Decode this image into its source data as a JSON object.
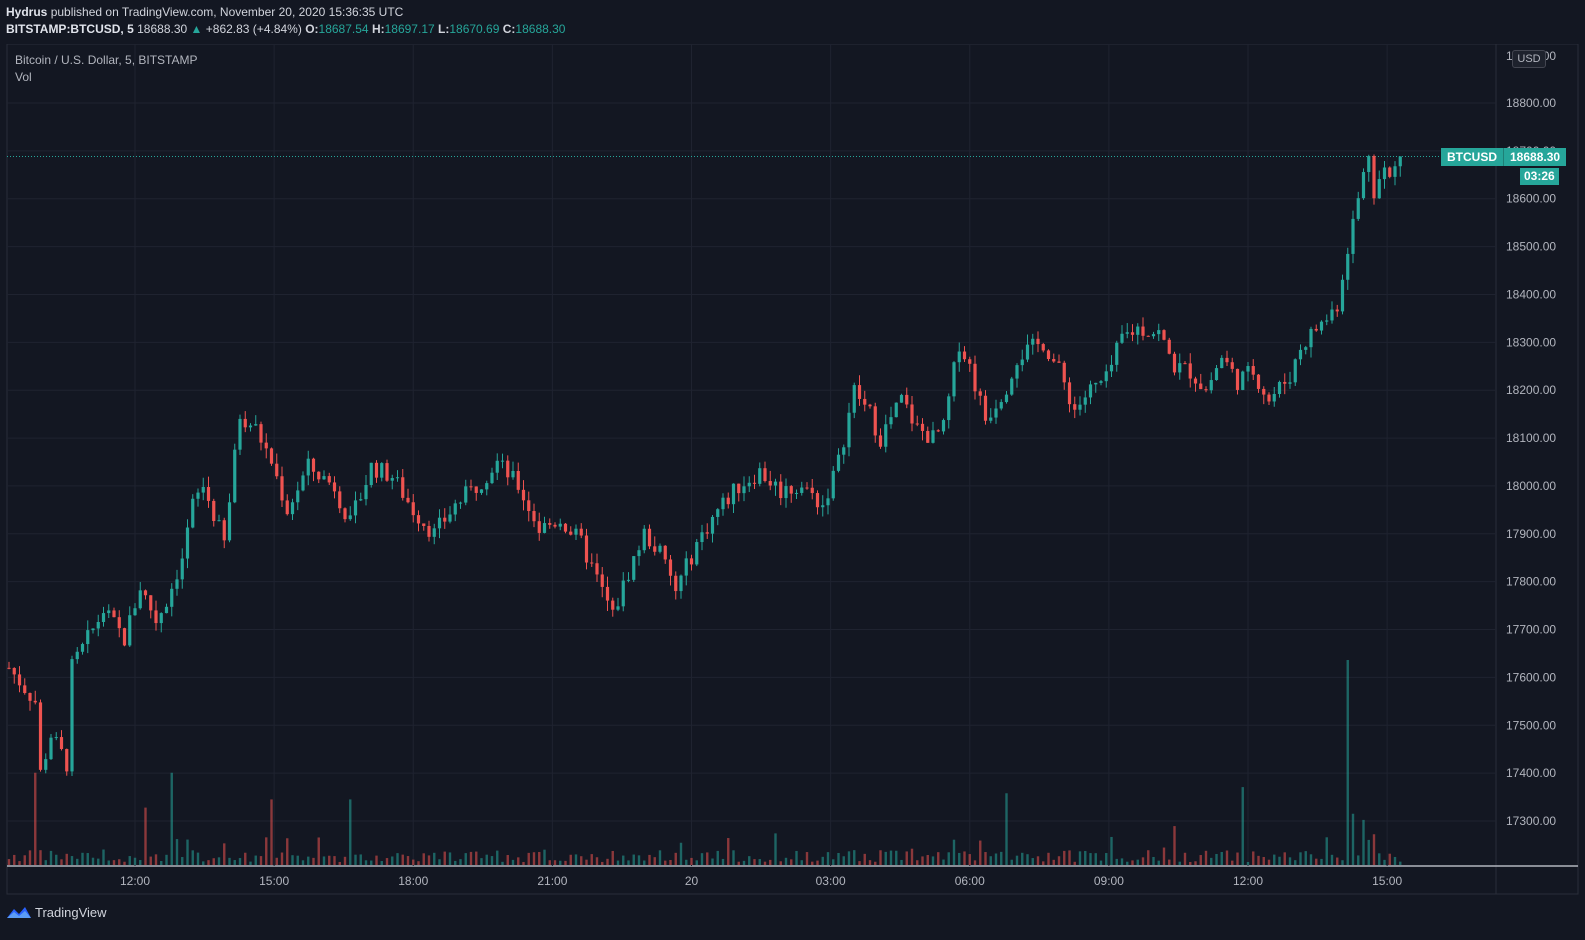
{
  "header": {
    "author": "Hydrus",
    "published_text": "published on TradingView.com, November 20, 2020 15:36:35 UTC",
    "symbol": "BITSTAMP:BTCUSD, 5",
    "last": "18688.30",
    "change": "+862.83 (+4.84%)",
    "o_label": "O:",
    "o_val": "18687.54",
    "h_label": "H:",
    "h_val": "18697.17",
    "l_label": "L:",
    "l_val": "18670.69",
    "c_label": "C:",
    "c_val": "18688.30"
  },
  "legend": {
    "title": "Bitcoin / U.S. Dollar, 5, BITSTAMP",
    "vol": "Vol"
  },
  "currency_button": "USD",
  "price_tag": {
    "name": "BTCUSD",
    "value": "18688.30",
    "countdown": "03:26"
  },
  "footer": {
    "brand": "TradingView"
  },
  "colors": {
    "background": "#131722",
    "up": "#26a69a",
    "down": "#ef5350",
    "grid": "#1f2330"
  },
  "chart_data": {
    "type": "candlestick",
    "symbol": "BTCUSD",
    "interval": "5",
    "ylim": [
      17200,
      18900
    ],
    "y_ticks": [
      17300,
      17400,
      17500,
      17600,
      17700,
      17800,
      17900,
      18000,
      18100,
      18200,
      18300,
      18400,
      18500,
      18600,
      18700,
      18800
    ],
    "y_tick_labels": [
      "17300.00",
      "17400.00",
      "17500.00",
      "17600.00",
      "17700.00",
      "17800.00",
      "17900.00",
      "18000.00",
      "18100.00",
      "18200.00",
      "18300.00",
      "18400.00",
      "18500.00",
      "18600.00",
      "18700.00",
      "18800.00"
    ],
    "x_tick_labels": [
      "12:00",
      "15:00",
      "18:00",
      "21:00",
      "20",
      "03:00",
      "06:00",
      "09:00",
      "12:00",
      "15:00"
    ],
    "current_price": 18688.3,
    "close_path": [
      [
        0,
        17620
      ],
      [
        5,
        17550
      ],
      [
        6,
        17400
      ],
      [
        8,
        17480
      ],
      [
        11,
        17420
      ],
      [
        12,
        17620
      ],
      [
        16,
        17700
      ],
      [
        18,
        17740
      ],
      [
        22,
        17680
      ],
      [
        25,
        17790
      ],
      [
        28,
        17720
      ],
      [
        30,
        17760
      ],
      [
        33,
        17850
      ],
      [
        35,
        17960
      ],
      [
        37,
        18000
      ],
      [
        39,
        17940
      ],
      [
        41,
        17880
      ],
      [
        44,
        18150
      ],
      [
        47,
        18120
      ],
      [
        50,
        18050
      ],
      [
        53,
        17950
      ],
      [
        57,
        18040
      ],
      [
        62,
        18000
      ],
      [
        65,
        17920
      ],
      [
        69,
        18040
      ],
      [
        73,
        18020
      ],
      [
        77,
        17950
      ],
      [
        81,
        17900
      ],
      [
        85,
        17960
      ],
      [
        89,
        18000
      ],
      [
        93,
        18050
      ],
      [
        97,
        18000
      ],
      [
        101,
        17910
      ],
      [
        105,
        17930
      ],
      [
        109,
        17880
      ],
      [
        113,
        17780
      ],
      [
        115,
        17730
      ],
      [
        118,
        17820
      ],
      [
        121,
        17900
      ],
      [
        124,
        17860
      ],
      [
        127,
        17780
      ],
      [
        131,
        17880
      ],
      [
        135,
        17950
      ],
      [
        139,
        18000
      ],
      [
        143,
        18030
      ],
      [
        147,
        17990
      ],
      [
        151,
        18000
      ],
      [
        155,
        17960
      ],
      [
        158,
        18050
      ],
      [
        161,
        18200
      ],
      [
        164,
        18150
      ],
      [
        166,
        18100
      ],
      [
        170,
        18180
      ],
      [
        173,
        18120
      ],
      [
        176,
        18100
      ],
      [
        178,
        18120
      ],
      [
        181,
        18300
      ],
      [
        183,
        18250
      ],
      [
        186,
        18140
      ],
      [
        190,
        18210
      ],
      [
        192,
        18270
      ],
      [
        197,
        18300
      ],
      [
        200,
        18240
      ],
      [
        203,
        18160
      ],
      [
        206,
        18200
      ],
      [
        209,
        18220
      ],
      [
        212,
        18310
      ],
      [
        215,
        18330
      ],
      [
        219,
        18320
      ],
      [
        222,
        18250
      ],
      [
        225,
        18240
      ],
      [
        228,
        18200
      ],
      [
        231,
        18270
      ],
      [
        234,
        18220
      ],
      [
        237,
        18240
      ],
      [
        240,
        18180
      ],
      [
        244,
        18230
      ],
      [
        246,
        18290
      ],
      [
        249,
        18330
      ],
      [
        251,
        18350
      ],
      [
        253,
        18380
      ],
      [
        255,
        18500
      ],
      [
        257,
        18600
      ],
      [
        259,
        18700
      ],
      [
        260,
        18620
      ],
      [
        262,
        18660
      ],
      [
        263,
        18640
      ],
      [
        265,
        18688
      ]
    ],
    "volume_peaks": [
      [
        5,
        0.45
      ],
      [
        26,
        0.28
      ],
      [
        31,
        0.45
      ],
      [
        50,
        0.32
      ],
      [
        65,
        0.32
      ],
      [
        190,
        0.35
      ],
      [
        235,
        0.38
      ],
      [
        255,
        1.0
      ],
      [
        256,
        0.25
      ],
      [
        258,
        0.22
      ],
      [
        260,
        0.15
      ]
    ]
  }
}
